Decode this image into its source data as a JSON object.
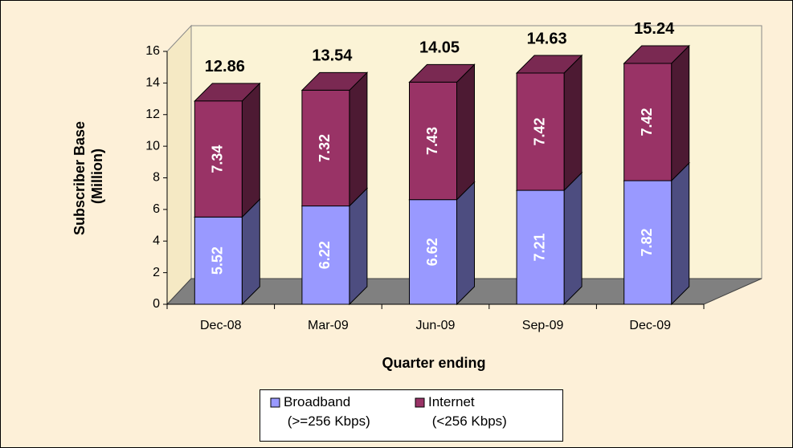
{
  "chart_data": {
    "type": "bar3d_stacked",
    "categories": [
      "Dec-08",
      "Mar-09",
      "Jun-09",
      "Sep-09",
      "Dec-09"
    ],
    "series": [
      {
        "name": "Broadband (>=256 Kbps)",
        "color": "#9999ff",
        "values": [
          5.52,
          6.22,
          6.62,
          7.21,
          7.82
        ]
      },
      {
        "name": "Internet (<256 Kbps)",
        "color": "#993366",
        "values": [
          7.34,
          7.32,
          7.43,
          7.42,
          7.42
        ]
      }
    ],
    "annotations": [
      "12.86",
      "13.54",
      "14.05",
      "14.63",
      "15.24"
    ],
    "y_label": "Subscriber Base (Million)",
    "x_label": "Quarter ending",
    "ylim": [
      0,
      16
    ],
    "yticks": [
      0,
      2,
      4,
      6,
      8,
      10,
      12,
      14,
      16
    ],
    "legend": "bottom"
  }
}
